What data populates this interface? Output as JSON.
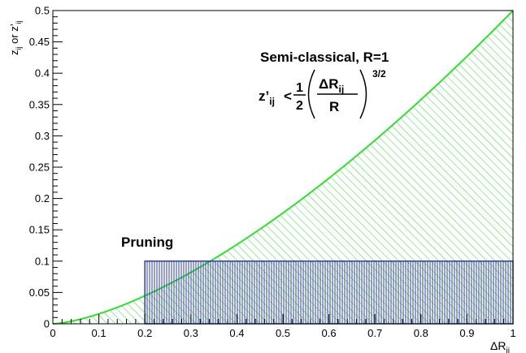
{
  "chart_data": {
    "type": "area",
    "xlabel": {
      "base": "ΔR",
      "sub": "ij"
    },
    "ylabel": {
      "p1": "z",
      "s1": "ij",
      "p2": " or z’",
      "s2": "ij"
    },
    "xlim": [
      0,
      1
    ],
    "ylim": [
      0,
      0.5
    ],
    "x_ticks": [
      "0",
      "0.1",
      "0.2",
      "0.3",
      "0.4",
      "0.5",
      "0.6",
      "0.7",
      "0.8",
      "0.9",
      "1"
    ],
    "y_ticks": [
      "0",
      "0.05",
      "0.1",
      "0.15",
      "0.2",
      "0.25",
      "0.3",
      "0.35",
      "0.4",
      "0.45",
      "0.5"
    ],
    "grid": false,
    "series": [
      {
        "name": "Semi-classical, R=1",
        "function": "0.5 * x^1.5",
        "x": [
          0,
          0.1,
          0.2,
          0.3,
          0.4,
          0.5,
          0.6,
          0.7,
          0.8,
          0.9,
          1.0
        ],
        "y": [
          0,
          0.0158,
          0.0447,
          0.0822,
          0.1265,
          0.1768,
          0.2324,
          0.2928,
          0.3578,
          0.4269,
          0.5
        ],
        "color": "#33dd33",
        "fill": "diagonal-hatch"
      },
      {
        "name": "Pruning",
        "x_range": [
          0.2,
          1.0
        ],
        "y_range": [
          0,
          0.1
        ],
        "color": "#2d3fa0",
        "fill": "vertical-hatch"
      }
    ],
    "annotations": {
      "semi_title": "Semi-classical, R=1",
      "formula": {
        "lhs": "z’",
        "lhs_sub": "ij",
        "op": "<",
        "num": "1",
        "den": "2",
        "inner_num": "ΔR",
        "inner_num_sub": "ij",
        "inner_den": "R",
        "exponent": "3/2"
      },
      "pruning_label": "Pruning"
    }
  }
}
